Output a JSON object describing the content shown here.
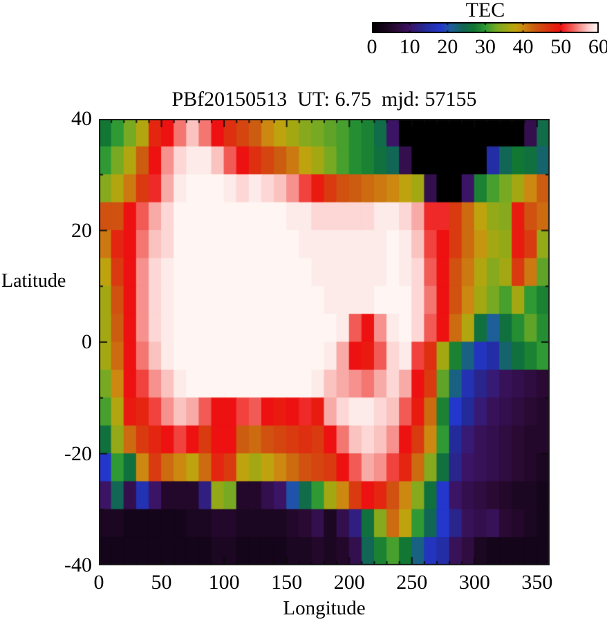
{
  "colorbar": {
    "title": "TEC",
    "min": 0,
    "max": 60,
    "tick_labels": [
      0,
      10,
      20,
      30,
      40,
      50,
      60
    ]
  },
  "plot": {
    "title": "PBf20150513  UT: 6.75  mjd: 57155",
    "xlabel": "Longitude",
    "ylabel": "Latitude",
    "x_tick_labels": [
      0,
      50,
      100,
      150,
      200,
      250,
      300,
      350
    ],
    "y_tick_labels": [
      40,
      20,
      0,
      -20,
      -40
    ],
    "x_minor_step": 10,
    "y_minor_step": 10
  },
  "chart_data": {
    "type": "heatmap",
    "title": "PBf20150513  UT: 6.75  mjd: 57155",
    "xlabel": "Longitude",
    "ylabel": "Latitude",
    "zlabel": "TEC",
    "xlim": [
      0,
      360
    ],
    "ylim": [
      -40,
      40
    ],
    "zlim": [
      0,
      60
    ],
    "lon_start": 0,
    "lon_step": 10,
    "lat_start": 40,
    "lat_step": -5,
    "grid": "off",
    "legend": "colorbar-top-right",
    "colormap_stops": [
      [
        0,
        "#000000"
      ],
      [
        6,
        "#2a0a33"
      ],
      [
        10,
        "#3c1466"
      ],
      [
        14,
        "#232a99"
      ],
      [
        18,
        "#2337cc"
      ],
      [
        21,
        "#1d5f99"
      ],
      [
        24,
        "#116655"
      ],
      [
        27,
        "#117733"
      ],
      [
        30,
        "#2f9933"
      ],
      [
        33,
        "#77aa22"
      ],
      [
        36,
        "#a3a812"
      ],
      [
        38,
        "#bfa30e"
      ],
      [
        40,
        "#cc8811"
      ],
      [
        43,
        "#cc5c10"
      ],
      [
        46,
        "#d93a0f"
      ],
      [
        50,
        "#ee1111"
      ],
      [
        53,
        "#f25a55"
      ],
      [
        55,
        "#f6918d"
      ],
      [
        57,
        "#fac3c0"
      ],
      [
        59,
        "#fdebe9"
      ],
      [
        60,
        "#fff6f3"
      ]
    ],
    "values": [
      [
        27,
        30,
        33,
        37,
        48,
        50,
        54,
        57,
        54,
        50,
        47,
        45,
        43,
        40,
        38,
        36,
        34,
        33,
        32,
        31,
        29,
        28,
        25,
        10,
        0,
        0,
        0,
        0,
        0,
        0,
        0,
        0,
        0,
        0,
        8,
        25
      ],
      [
        30,
        33,
        37,
        43,
        50,
        55,
        58,
        59,
        59,
        57,
        53,
        50,
        47,
        45,
        43,
        41,
        38,
        36,
        33,
        31,
        29,
        28,
        26,
        24,
        8,
        0,
        0,
        0,
        0,
        0,
        0,
        15,
        24,
        27,
        26,
        23
      ],
      [
        34,
        37,
        41,
        46,
        51,
        56,
        59,
        60,
        60,
        60,
        59,
        58,
        59,
        58,
        57,
        55,
        52,
        49,
        46,
        44,
        43,
        42,
        41,
        40,
        38,
        36,
        8,
        0,
        0,
        10,
        28,
        31,
        33,
        36,
        40,
        43
      ],
      [
        44,
        44,
        50,
        53,
        56,
        58,
        60,
        60,
        60,
        60,
        60,
        60,
        60,
        60,
        60,
        59,
        59,
        58,
        58,
        58,
        58,
        58,
        59,
        59,
        58,
        56,
        51,
        51,
        46,
        42,
        38,
        35,
        34,
        49,
        44,
        42
      ],
      [
        41,
        48,
        50,
        54,
        57,
        58,
        60,
        60,
        60,
        60,
        60,
        60,
        60,
        60,
        60,
        60,
        59,
        59,
        59,
        59,
        59,
        59,
        59,
        60,
        59,
        57,
        52,
        50,
        46,
        42,
        39,
        36,
        35,
        49,
        46,
        35
      ],
      [
        38,
        46,
        50,
        55,
        58,
        59,
        60,
        60,
        60,
        60,
        60,
        60,
        60,
        60,
        60,
        60,
        60,
        59,
        59,
        59,
        59,
        59,
        59,
        60,
        59,
        58,
        53,
        50,
        44,
        41,
        37,
        34,
        36,
        46,
        41,
        32
      ],
      [
        36,
        44,
        50,
        55,
        58,
        59,
        60,
        60,
        60,
        60,
        60,
        60,
        60,
        60,
        60,
        60,
        60,
        60,
        59,
        59,
        59,
        59,
        60,
        60,
        60,
        58,
        54,
        50,
        44,
        40,
        36,
        33,
        31,
        36,
        30,
        28
      ],
      [
        36,
        43,
        50,
        55,
        58,
        59,
        60,
        60,
        60,
        60,
        60,
        60,
        60,
        60,
        60,
        60,
        60,
        60,
        60,
        59,
        53,
        50,
        55,
        59,
        60,
        58,
        53,
        50,
        42,
        37,
        26,
        21,
        26,
        29,
        32,
        29
      ],
      [
        36,
        42,
        50,
        54,
        57,
        59,
        60,
        60,
        60,
        60,
        60,
        60,
        60,
        60,
        60,
        60,
        60,
        60,
        59,
        56,
        50,
        49,
        53,
        58,
        59,
        52,
        47,
        36,
        28,
        22,
        17,
        15,
        23,
        26,
        28,
        30
      ],
      [
        33,
        40,
        50,
        52,
        55,
        57,
        59,
        60,
        60,
        60,
        60,
        60,
        60,
        60,
        60,
        60,
        60,
        59,
        57,
        56,
        55,
        54,
        56,
        58,
        56,
        50,
        46,
        32,
        22,
        16,
        13,
        11,
        9,
        8,
        7,
        6
      ],
      [
        31,
        37,
        49,
        48,
        52,
        55,
        57,
        56,
        53,
        50,
        50,
        52,
        53,
        50,
        49,
        50,
        51,
        49,
        56,
        58,
        59,
        59,
        58,
        57,
        53,
        49,
        42,
        28,
        18,
        14,
        11,
        9,
        8,
        7,
        6,
        5
      ],
      [
        26,
        35,
        42,
        46,
        48,
        50,
        52,
        50,
        46,
        50,
        50,
        43,
        42,
        44,
        45,
        46,
        47,
        46,
        50,
        54,
        57,
        58,
        57,
        55,
        50,
        46,
        40,
        30,
        14,
        11,
        9,
        8,
        7,
        6,
        5,
        5
      ],
      [
        18,
        30,
        26,
        40,
        46,
        42,
        40,
        38,
        42,
        48,
        46,
        38,
        36,
        38,
        40,
        42,
        44,
        45,
        46,
        50,
        53,
        56,
        55,
        52,
        48,
        42,
        34,
        26,
        13,
        10,
        9,
        8,
        7,
        6,
        5,
        4
      ],
      [
        10,
        24,
        8,
        16,
        10,
        5,
        5,
        5,
        12,
        35,
        33,
        5,
        5,
        8,
        10,
        20,
        25,
        30,
        36,
        40,
        46,
        50,
        48,
        44,
        40,
        34,
        26,
        18,
        10,
        8,
        7,
        6,
        5,
        4,
        4,
        3
      ],
      [
        4,
        4,
        3,
        3,
        3,
        3,
        3,
        4,
        4,
        5,
        5,
        4,
        4,
        4,
        4,
        5,
        6,
        8,
        4,
        8,
        12,
        26,
        34,
        42,
        38,
        30,
        24,
        18,
        13,
        9,
        8,
        9,
        6,
        5,
        4,
        3
      ],
      [
        3,
        3,
        3,
        3,
        3,
        3,
        3,
        3,
        3,
        4,
        4,
        3,
        3,
        3,
        3,
        4,
        4,
        5,
        4,
        5,
        8,
        24,
        28,
        31,
        27,
        22,
        17,
        15,
        9,
        7,
        4,
        3,
        3,
        3,
        3,
        3
      ]
    ]
  }
}
